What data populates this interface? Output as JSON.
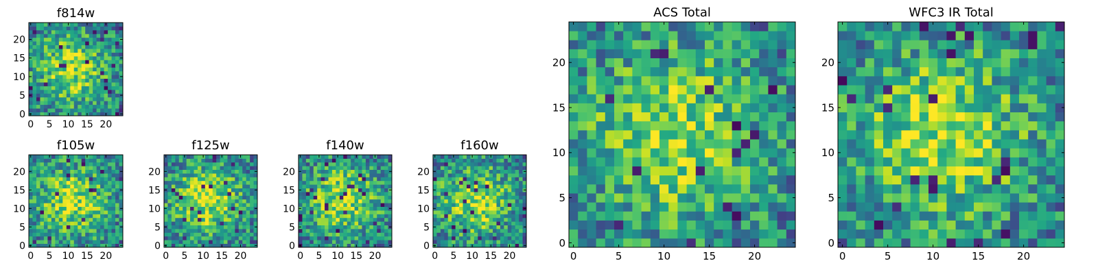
{
  "colormap": {
    "name": "viridis",
    "low": "#440154",
    "mid": "#21918c",
    "high": "#fde725"
  },
  "chart_data": [
    {
      "type": "heatmap",
      "title": "f814w",
      "size": 25,
      "xticks": [
        0,
        5,
        10,
        15,
        20
      ],
      "yticks": [
        0,
        5,
        10,
        15,
        20
      ],
      "xlim": [
        -0.5,
        24.5
      ],
      "ylim": [
        -0.5,
        24.5
      ],
      "grid": false
    },
    {
      "type": "heatmap",
      "title": "f105w",
      "size": 25,
      "xticks": [
        0,
        5,
        10,
        15,
        20
      ],
      "yticks": [
        0,
        5,
        10,
        15,
        20
      ],
      "xlim": [
        -0.5,
        24.5
      ],
      "ylim": [
        -0.5,
        24.5
      ],
      "grid": false
    },
    {
      "type": "heatmap",
      "title": "f125w",
      "size": 25,
      "xticks": [
        0,
        5,
        10,
        15,
        20
      ],
      "yticks": [
        0,
        5,
        10,
        15,
        20
      ],
      "xlim": [
        -0.5,
        24.5
      ],
      "ylim": [
        -0.5,
        24.5
      ],
      "grid": false
    },
    {
      "type": "heatmap",
      "title": "f140w",
      "size": 25,
      "xticks": [
        0,
        5,
        10,
        15,
        20
      ],
      "yticks": [
        0,
        5,
        10,
        15,
        20
      ],
      "xlim": [
        -0.5,
        24.5
      ],
      "ylim": [
        -0.5,
        24.5
      ],
      "grid": false
    },
    {
      "type": "heatmap",
      "title": "f160w",
      "size": 25,
      "xticks": [
        0,
        5,
        10,
        15,
        20
      ],
      "yticks": [
        0,
        5,
        10,
        15,
        20
      ],
      "xlim": [
        -0.5,
        24.5
      ],
      "ylim": [
        -0.5,
        24.5
      ],
      "grid": false
    },
    {
      "type": "heatmap",
      "title": "ACS Total",
      "size": 25,
      "xticks": [
        0,
        5,
        10,
        15,
        20
      ],
      "yticks": [
        0,
        5,
        10,
        15,
        20
      ],
      "xlim": [
        -0.5,
        24.5
      ],
      "ylim": [
        -0.5,
        24.5
      ],
      "grid": false
    },
    {
      "type": "heatmap",
      "title": "WFC3 IR Total",
      "size": 25,
      "xticks": [
        0,
        5,
        10,
        15,
        20
      ],
      "yticks": [
        0,
        5,
        10,
        15,
        20
      ],
      "xlim": [
        -0.5,
        24.5
      ],
      "ylim": [
        -0.5,
        24.5
      ],
      "grid": false
    }
  ]
}
